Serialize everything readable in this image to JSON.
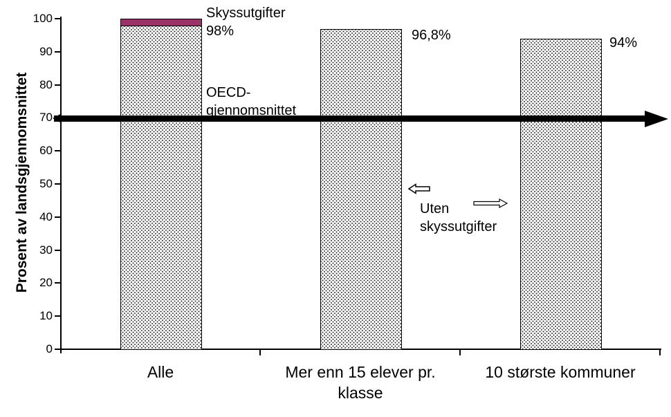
{
  "chart_data": {
    "type": "bar",
    "stacked": true,
    "title": "",
    "xlabel": "",
    "ylabel": "Prosent av landsgjennomsnittet",
    "ylim": [
      0,
      100
    ],
    "yticks": [
      0,
      10,
      20,
      30,
      40,
      50,
      60,
      70,
      80,
      90,
      100
    ],
    "grid": false,
    "legend_position": "none",
    "categories": [
      "Alle",
      "Mer enn 15 elever pr. klasse",
      "10 største kommuner"
    ],
    "series": [
      {
        "name": "Uten skyssutgifter",
        "fill": "dot-pattern",
        "values": [
          98,
          96.8,
          94
        ]
      },
      {
        "name": "Skyssutgifter",
        "fill": "#993366",
        "values": [
          2,
          0,
          0
        ]
      }
    ],
    "value_labels": [
      "98%",
      "96,8%",
      "94%"
    ],
    "reference_line": {
      "value": 70,
      "label": "OECD-gjennomsnittet",
      "style": "thick-black-arrow-right"
    }
  },
  "annotations": {
    "skyssutgifter": {
      "line1": "Skyssutgifter",
      "line2": "98%"
    },
    "oecd": {
      "line1": "OECD-",
      "line2": "gjennomsnittet"
    },
    "uten": {
      "line1": "Uten",
      "line2": "skyssutgifter"
    }
  },
  "colors": {
    "segment": "#993366",
    "axis": "#000000",
    "background": "#ffffff",
    "pattern_dot": "#2e2e2e"
  }
}
